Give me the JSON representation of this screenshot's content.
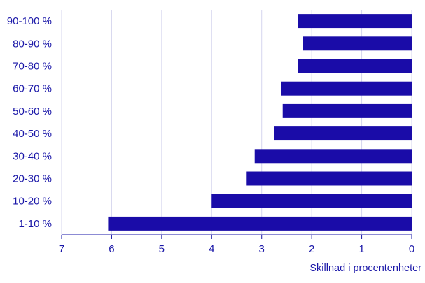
{
  "chart_data": {
    "type": "bar",
    "orientation": "horizontal",
    "x_reversed": true,
    "categories": [
      "90-100 %",
      "80-90 %",
      "70-80 %",
      "60-70 %",
      "50-60 %",
      "40-50 %",
      "30-40 %",
      "20-30 %",
      "10-20 %",
      "1-10 %"
    ],
    "values": [
      2.28,
      2.17,
      2.27,
      2.61,
      2.58,
      2.75,
      3.14,
      3.3,
      4.0,
      6.07
    ],
    "xlabel": "Skillnad i procentenheter",
    "xlim": [
      0,
      7
    ],
    "xticks": [
      "7",
      "6",
      "5",
      "4",
      "3",
      "2",
      "1",
      "0"
    ],
    "grid": "vertical",
    "colors": {
      "bar": "#1a0ca8",
      "text": "#1a17a8",
      "grid": "#d6d6ee",
      "axis": "#1a17a8"
    }
  }
}
